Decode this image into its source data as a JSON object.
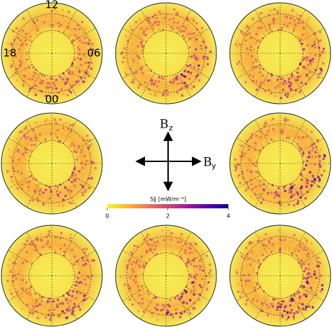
{
  "clock_labels": {
    "top": "12",
    "left": "18",
    "right": "06",
    "bottom": "00"
  },
  "arrows": {
    "vertical": {
      "main": "B",
      "sub": "z"
    },
    "horizontal": {
      "main": "B",
      "sub": "y"
    }
  },
  "colorbar": {
    "label": "S∥ [mW/m⁻²]",
    "lim": [
      0,
      4
    ],
    "ticks": [
      0,
      2,
      4
    ],
    "colors": [
      "#f0f921",
      "#fca636",
      "#e16462",
      "#b12a90",
      "#6a00a8",
      "#0d0887"
    ]
  }
}
